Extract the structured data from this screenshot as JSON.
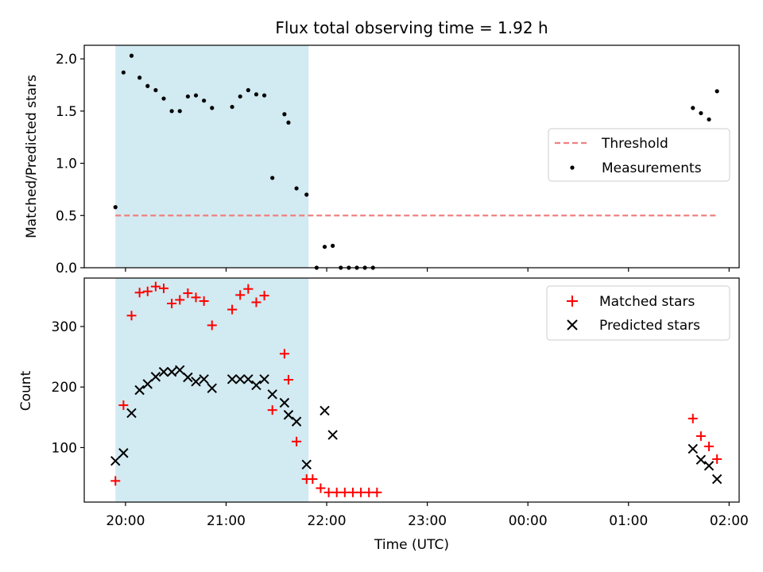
{
  "chart_data": [
    {
      "type": "scatter",
      "title": "Flux total observing time = 1.92 h",
      "xlabel": "",
      "ylabel": "Matched/Predicted stars",
      "ylim": [
        0,
        2.13
      ],
      "yticks": [
        0.0,
        0.5,
        1.0,
        1.5,
        2.0
      ],
      "ytick_labels": [
        "0.0",
        "0.5",
        "1.0",
        "1.5",
        "2.0"
      ],
      "xlim": [
        -0.41,
        6.1
      ],
      "xticks": [
        0,
        1,
        2,
        3,
        4,
        5,
        6
      ],
      "shaded_span": [
        -0.1,
        1.82
      ],
      "shaded_color": "#add8e6",
      "legend": {
        "placement": "center-right",
        "entries": [
          {
            "label": "Threshold",
            "kind": "dashed-line",
            "color": "#f08080"
          },
          {
            "label": "Measurements",
            "kind": "dot",
            "color": "#000000"
          }
        ]
      },
      "threshold": {
        "name": "Threshold",
        "color": "#f08080",
        "x": [
          -0.1,
          5.88
        ],
        "y": 0.5
      },
      "series": [
        {
          "name": "Measurements",
          "color": "#000000",
          "marker": "dot",
          "x": [
            -0.1,
            -0.02,
            0.06,
            0.14,
            0.22,
            0.3,
            0.38,
            0.46,
            0.54,
            0.62,
            0.7,
            0.78,
            0.86,
            1.06,
            1.14,
            1.22,
            1.3,
            1.38,
            1.46,
            1.58,
            1.62,
            1.7,
            1.8,
            1.9,
            1.98,
            2.06,
            2.14,
            2.22,
            2.3,
            2.38,
            2.46,
            5.64,
            5.72,
            5.8,
            5.88
          ],
          "y": [
            0.58,
            1.87,
            2.03,
            1.82,
            1.74,
            1.7,
            1.62,
            1.5,
            1.5,
            1.64,
            1.65,
            1.6,
            1.53,
            1.54,
            1.64,
            1.7,
            1.66,
            1.65,
            0.86,
            1.47,
            1.39,
            0.76,
            0.7,
            0.0,
            0.2,
            0.21,
            0.0,
            0.0,
            0.0,
            0.0,
            0.0,
            1.53,
            1.48,
            1.42,
            1.69
          ]
        }
      ]
    },
    {
      "type": "scatter",
      "title": "",
      "xlabel": "Time (UTC)",
      "ylabel": "Count",
      "ylim": [
        10,
        380
      ],
      "yticks": [
        100,
        200,
        300
      ],
      "ytick_labels": [
        "100",
        "200",
        "300"
      ],
      "xlim": [
        -0.41,
        6.1
      ],
      "xticks": [
        0,
        1,
        2,
        3,
        4,
        5,
        6
      ],
      "xtick_labels": [
        "20:00",
        "21:00",
        "22:00",
        "23:00",
        "00:00",
        "01:00",
        "02:00"
      ],
      "shaded_span": [
        -0.1,
        1.82
      ],
      "shaded_color": "#add8e6",
      "legend": {
        "placement": "top-right",
        "entries": [
          {
            "label": "Matched stars",
            "kind": "plus",
            "color": "#ff0000"
          },
          {
            "label": "Predicted stars",
            "kind": "x",
            "color": "#000000"
          }
        ]
      },
      "series": [
        {
          "name": "Matched stars",
          "color": "#ff0000",
          "marker": "plus",
          "x": [
            -0.1,
            -0.02,
            0.06,
            0.14,
            0.22,
            0.3,
            0.38,
            0.46,
            0.54,
            0.62,
            0.7,
            0.78,
            0.86,
            1.06,
            1.14,
            1.22,
            1.3,
            1.38,
            1.46,
            1.58,
            1.62,
            1.7,
            1.8,
            1.86,
            1.94,
            2.02,
            2.1,
            2.18,
            2.26,
            2.34,
            2.42,
            2.5,
            5.64,
            5.72,
            5.8,
            5.88
          ],
          "y": [
            45,
            170,
            318,
            356,
            358,
            366,
            363,
            338,
            344,
            355,
            348,
            342,
            302,
            328,
            352,
            362,
            340,
            351,
            162,
            255,
            212,
            110,
            48,
            48,
            33,
            26,
            26,
            26,
            26,
            26,
            26,
            26,
            148,
            119,
            102,
            81
          ]
        },
        {
          "name": "Predicted stars",
          "color": "#000000",
          "marker": "x",
          "x": [
            -0.1,
            -0.02,
            0.06,
            0.14,
            0.22,
            0.3,
            0.38,
            0.46,
            0.54,
            0.62,
            0.7,
            0.78,
            0.86,
            1.06,
            1.14,
            1.22,
            1.3,
            1.38,
            1.46,
            1.58,
            1.62,
            1.7,
            1.8,
            1.98,
            2.06,
            5.64,
            5.72,
            5.8,
            5.88
          ],
          "y": [
            78,
            91,
            157,
            195,
            205,
            217,
            225,
            225,
            228,
            216,
            209,
            213,
            198,
            213,
            213,
            213,
            203,
            213,
            188,
            174,
            154,
            143,
            72,
            161,
            121,
            98,
            80,
            70,
            48
          ]
        }
      ]
    }
  ]
}
